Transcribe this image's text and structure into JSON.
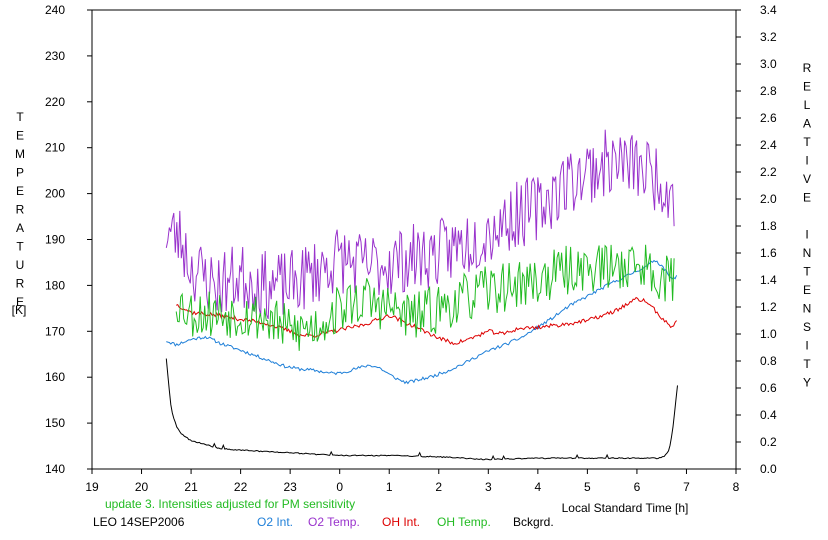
{
  "chart_data": {
    "type": "line",
    "y_left_label": "TEMPERATURE",
    "y_left_unit": "[K]",
    "y_right_label": "RELATIVE INTENSITY",
    "x_label": "Local Standard Time [h]",
    "note": "update 3. Intensities adjusted for PM sensitivity",
    "station_date": "LEO 14SEP2006",
    "x_axis": {
      "min": 19,
      "max": 32,
      "tick_step": 1,
      "tick_labels": [
        "19",
        "20",
        "21",
        "22",
        "23",
        "0",
        "1",
        "2",
        "3",
        "4",
        "5",
        "6",
        "7",
        "8"
      ]
    },
    "y_left_axis": {
      "min": 140,
      "max": 240,
      "tick_step": 10,
      "tick_labels": [
        "140",
        "150",
        "160",
        "170",
        "180",
        "190",
        "200",
        "210",
        "220",
        "230",
        "240"
      ]
    },
    "y_right_axis": {
      "min": 0.0,
      "max": 3.4,
      "tick_step": 0.2,
      "tick_labels": [
        "0.0",
        "0.2",
        "0.4",
        "0.6",
        "0.8",
        "1.0",
        "1.2",
        "1.4",
        "1.6",
        "1.8",
        "2.0",
        "2.2",
        "2.4",
        "2.6",
        "2.8",
        "3.0",
        "3.2",
        "3.4"
      ]
    },
    "series": [
      {
        "name": "O2 Int.",
        "axis": "right",
        "color": "#1e7fd8",
        "noise": 0.012,
        "seed": 11,
        "points": [
          [
            20.5,
            0.95
          ],
          [
            20.7,
            0.92
          ],
          [
            21.0,
            0.96
          ],
          [
            21.3,
            0.98
          ],
          [
            21.6,
            0.93
          ],
          [
            22.0,
            0.88
          ],
          [
            22.3,
            0.84
          ],
          [
            22.6,
            0.8
          ],
          [
            22.9,
            0.76
          ],
          [
            23.2,
            0.74
          ],
          [
            23.5,
            0.73
          ],
          [
            23.8,
            0.71
          ],
          [
            24.0,
            0.71
          ],
          [
            24.3,
            0.74
          ],
          [
            24.6,
            0.77
          ],
          [
            24.8,
            0.75
          ],
          [
            25.0,
            0.7
          ],
          [
            25.2,
            0.66
          ],
          [
            25.35,
            0.64
          ],
          [
            25.6,
            0.66
          ],
          [
            25.9,
            0.69
          ],
          [
            26.2,
            0.73
          ],
          [
            26.5,
            0.78
          ],
          [
            26.8,
            0.84
          ],
          [
            27.1,
            0.89
          ],
          [
            27.4,
            0.93
          ],
          [
            27.7,
            0.98
          ],
          [
            28.0,
            1.05
          ],
          [
            28.3,
            1.12
          ],
          [
            28.6,
            1.2
          ],
          [
            28.9,
            1.26
          ],
          [
            29.2,
            1.32
          ],
          [
            29.5,
            1.38
          ],
          [
            29.8,
            1.43
          ],
          [
            30.0,
            1.47
          ],
          [
            30.2,
            1.5
          ],
          [
            30.35,
            1.55
          ],
          [
            30.5,
            1.51
          ],
          [
            30.6,
            1.46
          ],
          [
            30.7,
            1.4
          ],
          [
            30.8,
            1.43
          ]
        ]
      },
      {
        "name": "O2 Temp.",
        "axis": "left",
        "color": "#9933cc",
        "noise": 7.5,
        "seed": 23,
        "points": [
          [
            20.5,
            192
          ],
          [
            20.8,
            190
          ],
          [
            21.0,
            184
          ],
          [
            21.5,
            180
          ],
          [
            22.0,
            182
          ],
          [
            22.5,
            180
          ],
          [
            23.0,
            180
          ],
          [
            23.5,
            183
          ],
          [
            24.0,
            186
          ],
          [
            24.5,
            184
          ],
          [
            25.0,
            185
          ],
          [
            25.5,
            186
          ],
          [
            26.0,
            187
          ],
          [
            26.5,
            189
          ],
          [
            27.0,
            192
          ],
          [
            27.5,
            195
          ],
          [
            28.0,
            197
          ],
          [
            28.5,
            202
          ],
          [
            29.0,
            205
          ],
          [
            29.5,
            207
          ],
          [
            30.0,
            206
          ],
          [
            30.5,
            203
          ],
          [
            30.75,
            200
          ]
        ]
      },
      {
        "name": "OH Int.",
        "axis": "right",
        "color": "#dd0000",
        "noise": 0.015,
        "seed": 37,
        "points": [
          [
            20.7,
            1.22
          ],
          [
            21.0,
            1.16
          ],
          [
            21.5,
            1.14
          ],
          [
            22.0,
            1.11
          ],
          [
            22.5,
            1.08
          ],
          [
            23.0,
            1.02
          ],
          [
            23.2,
            0.99
          ],
          [
            23.5,
            0.99
          ],
          [
            24.0,
            1.03
          ],
          [
            24.5,
            1.07
          ],
          [
            25.0,
            1.14
          ],
          [
            25.3,
            1.09
          ],
          [
            25.6,
            1.04
          ],
          [
            26.0,
            0.97
          ],
          [
            26.3,
            0.93
          ],
          [
            26.6,
            0.96
          ],
          [
            27.0,
            1.02
          ],
          [
            27.3,
            1.0
          ],
          [
            27.6,
            1.04
          ],
          [
            28.0,
            1.05
          ],
          [
            28.5,
            1.07
          ],
          [
            29.0,
            1.1
          ],
          [
            29.5,
            1.16
          ],
          [
            29.8,
            1.22
          ],
          [
            30.0,
            1.26
          ],
          [
            30.2,
            1.24
          ],
          [
            30.4,
            1.16
          ],
          [
            30.6,
            1.08
          ],
          [
            30.7,
            1.05
          ],
          [
            30.8,
            1.1
          ]
        ]
      },
      {
        "name": "OH Temp.",
        "axis": "left",
        "color": "#22bb22",
        "noise": 5.5,
        "seed": 53,
        "points": [
          [
            20.7,
            177
          ],
          [
            21.0,
            174
          ],
          [
            21.5,
            174
          ],
          [
            22.0,
            174
          ],
          [
            22.5,
            173
          ],
          [
            23.0,
            170
          ],
          [
            23.5,
            171
          ],
          [
            24.0,
            175
          ],
          [
            24.5,
            177
          ],
          [
            25.0,
            175
          ],
          [
            25.5,
            173
          ],
          [
            26.0,
            175
          ],
          [
            26.5,
            177
          ],
          [
            27.0,
            179
          ],
          [
            27.5,
            180
          ],
          [
            28.0,
            181
          ],
          [
            28.5,
            183
          ],
          [
            29.0,
            184
          ],
          [
            29.5,
            184
          ],
          [
            30.0,
            185
          ],
          [
            30.5,
            182
          ],
          [
            30.75,
            181
          ]
        ]
      },
      {
        "name": "Bckgrd.",
        "axis": "right",
        "color": "#000000",
        "noise": 0.004,
        "seed": 71,
        "points": [
          [
            20.5,
            0.82
          ],
          [
            20.55,
            0.62
          ],
          [
            20.6,
            0.44
          ],
          [
            20.7,
            0.32
          ],
          [
            20.8,
            0.26
          ],
          [
            21.0,
            0.21
          ],
          [
            21.3,
            0.18
          ],
          [
            21.6,
            0.15
          ],
          [
            22.0,
            0.14
          ],
          [
            23.0,
            0.12
          ],
          [
            24.0,
            0.1
          ],
          [
            25.0,
            0.1
          ],
          [
            26.0,
            0.09
          ],
          [
            27.0,
            0.07
          ],
          [
            28.0,
            0.08
          ],
          [
            29.0,
            0.08
          ],
          [
            30.0,
            0.08
          ],
          [
            30.4,
            0.08
          ],
          [
            30.55,
            0.09
          ],
          [
            30.65,
            0.14
          ],
          [
            30.72,
            0.28
          ],
          [
            30.78,
            0.48
          ],
          [
            30.82,
            0.62
          ]
        ]
      }
    ]
  }
}
